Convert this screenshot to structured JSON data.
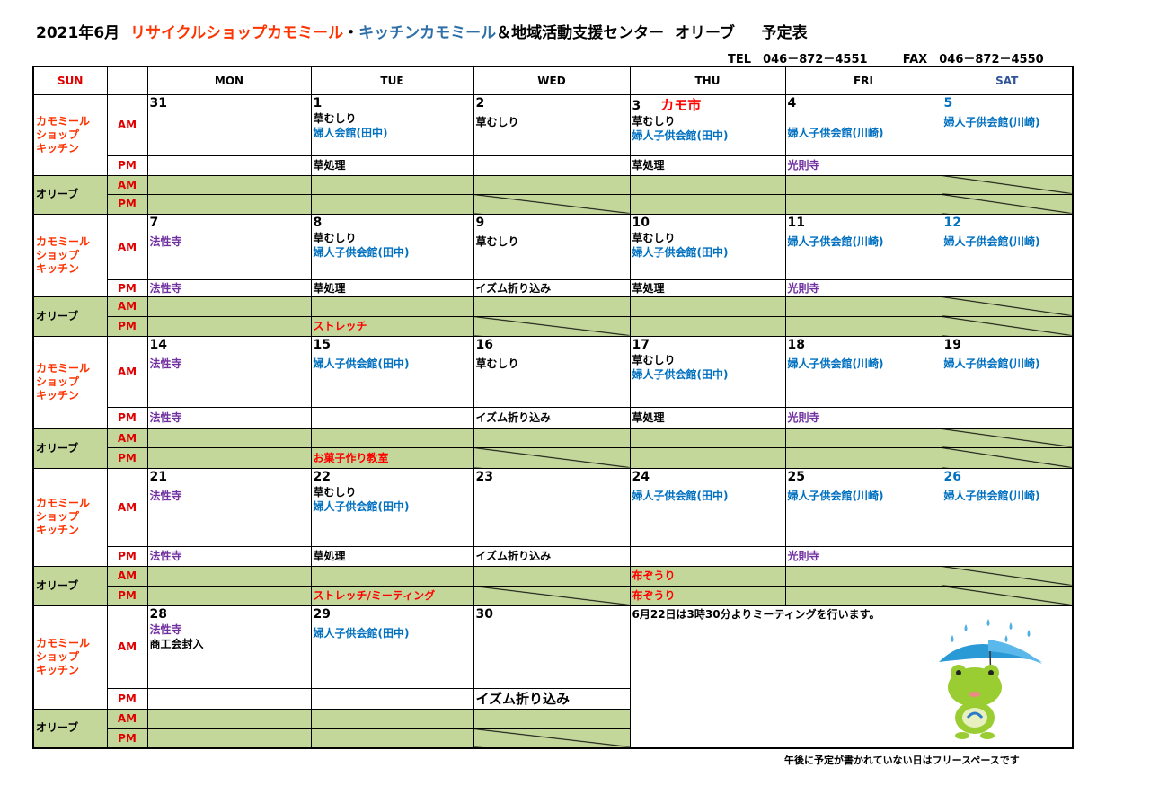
{
  "title": {
    "date": "2021年6月",
    "shop": "リサイクルショップカモミール",
    "dot": "・",
    "kitchen": "キッチンカモミール",
    "rest": "＆地域活動支援センター  オリーブ",
    "schedule": "予定表"
  },
  "contact": {
    "tel": "TEL  046－872－4551",
    "fax": "FAX  046－872－4550"
  },
  "colors": {
    "black": "#000000",
    "blue": "#0070c0",
    "purple": "#7030a0",
    "red": "#ff0000",
    "olive_fill": "#c4d79b",
    "sat": "#2f5597",
    "label": "#ff3300"
  },
  "header": {
    "sun": "SUN",
    "blank": "",
    "days": [
      "MON",
      "TUE",
      "WED",
      "THU",
      "FRI",
      "SAT"
    ]
  },
  "labels": {
    "shop": [
      "カモミール",
      "ショップ",
      "キッチン"
    ],
    "olive": "オリーブ",
    "am": "AM",
    "pm": "PM"
  },
  "weeks": [
    {
      "days": [
        {
          "num": "31",
          "am": [],
          "pm": [],
          "oam": [],
          "opm": []
        },
        {
          "num": "1",
          "am": [
            {
              "t": "草むしり",
              "c": "black"
            },
            {
              "t": "婦人会館(田中)",
              "c": "blue"
            }
          ],
          "pm": [
            {
              "t": "草処理",
              "c": "black"
            }
          ],
          "oam": [],
          "opm": []
        },
        {
          "num": "2",
          "am": [
            {
              "t": "草むしり",
              "c": "black"
            }
          ],
          "pm": [],
          "oam": [],
          "opm": [],
          "pmdiag": true
        },
        {
          "num": "3",
          "event": "カモ市",
          "am": [
            {
              "t": "草むしり",
              "c": "black"
            },
            {
              "t": "婦人子供会館(田中)",
              "c": "blue"
            }
          ],
          "pm": [
            {
              "t": "草処理",
              "c": "black"
            }
          ],
          "oam": [],
          "opm": []
        },
        {
          "num": "4",
          "am": [
            {
              "t": "",
              "c": "black"
            },
            {
              "t": "婦人子供会館(川崎)",
              "c": "blue"
            }
          ],
          "pm": [
            {
              "t": "光則寺",
              "c": "purple"
            }
          ],
          "oam": [],
          "opm": []
        },
        {
          "num": "5",
          "numc": "blue",
          "am": [
            {
              "t": "婦人子供会館(川崎)",
              "c": "blue"
            }
          ],
          "pm": [],
          "oam": [],
          "opm": [],
          "amdiag": true,
          "pmdiag": true
        }
      ]
    },
    {
      "days": [
        {
          "num": "7",
          "am": [
            {
              "t": "法性寺",
              "c": "purple"
            }
          ],
          "pm": [
            {
              "t": "法性寺",
              "c": "purple"
            }
          ],
          "oam": [],
          "opm": []
        },
        {
          "num": "8",
          "am": [
            {
              "t": "草むしり",
              "c": "black"
            },
            {
              "t": "婦人子供会館(田中)",
              "c": "blue"
            }
          ],
          "pm": [
            {
              "t": "草処理",
              "c": "black"
            }
          ],
          "oam": [],
          "opm": [
            {
              "t": "ストレッチ",
              "c": "red"
            }
          ]
        },
        {
          "num": "9",
          "am": [
            {
              "t": "草むしり",
              "c": "black"
            }
          ],
          "pm": [
            {
              "t": "イズム折り込み",
              "c": "black"
            }
          ],
          "oam": [],
          "opm": [],
          "pmdiag": true
        },
        {
          "num": "10",
          "am": [
            {
              "t": "草むしり",
              "c": "black"
            },
            {
              "t": "婦人子供会館(田中)",
              "c": "blue"
            }
          ],
          "pm": [
            {
              "t": "草処理",
              "c": "black"
            }
          ],
          "oam": [],
          "opm": []
        },
        {
          "num": "11",
          "am": [
            {
              "t": "婦人子供会館(川崎)",
              "c": "blue"
            }
          ],
          "pm": [
            {
              "t": "光則寺",
              "c": "purple"
            }
          ],
          "oam": [],
          "opm": []
        },
        {
          "num": "12",
          "numc": "blue",
          "am": [
            {
              "t": "婦人子供会館(川崎)",
              "c": "blue"
            }
          ],
          "pm": [],
          "oam": [],
          "opm": [],
          "amdiag": true,
          "pmdiag": true
        }
      ]
    },
    {
      "days": [
        {
          "num": "14",
          "am": [
            {
              "t": "法性寺",
              "c": "purple"
            }
          ],
          "pm": [
            {
              "t": "法性寺",
              "c": "purple"
            }
          ],
          "oam": [],
          "opm": []
        },
        {
          "num": "15",
          "am": [
            {
              "t": "婦人子供会館(田中)",
              "c": "blue"
            }
          ],
          "pm": [],
          "oam": [],
          "opm": [
            {
              "t": "お菓子作り教室",
              "c": "red"
            }
          ]
        },
        {
          "num": "16",
          "am": [
            {
              "t": "草むしり",
              "c": "black"
            }
          ],
          "pm": [
            {
              "t": "イズム折り込み",
              "c": "black"
            }
          ],
          "oam": [],
          "opm": [],
          "pmdiag": true
        },
        {
          "num": "17",
          "am": [
            {
              "t": "草むしり",
              "c": "black"
            },
            {
              "t": "婦人子供会館(田中)",
              "c": "blue"
            }
          ],
          "pm": [
            {
              "t": "草処理",
              "c": "black"
            }
          ],
          "oam": [],
          "opm": []
        },
        {
          "num": "18",
          "am": [
            {
              "t": "婦人子供会館(川崎)",
              "c": "blue"
            }
          ],
          "pm": [
            {
              "t": "光則寺",
              "c": "purple"
            }
          ],
          "oam": [],
          "opm": []
        },
        {
          "num": "19",
          "am": [
            {
              "t": "婦人子供会館(川崎)",
              "c": "blue"
            }
          ],
          "pm": [],
          "oam": [],
          "opm": [],
          "amdiag": true,
          "pmdiag": true
        }
      ]
    },
    {
      "days": [
        {
          "num": "21",
          "am": [
            {
              "t": "法性寺",
              "c": "purple"
            }
          ],
          "pm": [
            {
              "t": "法性寺",
              "c": "purple"
            }
          ],
          "oam": [],
          "opm": []
        },
        {
          "num": "22",
          "am": [
            {
              "t": "草むしり",
              "c": "black"
            },
            {
              "t": "婦人子供会館(田中)",
              "c": "blue"
            }
          ],
          "pm": [
            {
              "t": "草処理",
              "c": "black"
            }
          ],
          "oam": [],
          "opm": [
            {
              "t": "ストレッチ/ミーティング",
              "c": "red"
            }
          ]
        },
        {
          "num": "23",
          "am": [],
          "pm": [
            {
              "t": "イズム折り込み",
              "c": "black"
            }
          ],
          "oam": [],
          "opm": [],
          "pmdiag": true
        },
        {
          "num": "24",
          "am": [
            {
              "t": "婦人子供会館(田中)",
              "c": "blue"
            }
          ],
          "pm": [],
          "oam": [
            {
              "t": "布ぞうり",
              "c": "red"
            }
          ],
          "opm": [
            {
              "t": "布ぞうり",
              "c": "red"
            }
          ]
        },
        {
          "num": "25",
          "am": [
            {
              "t": "婦人子供会館(川崎)",
              "c": "blue"
            }
          ],
          "pm": [
            {
              "t": "光則寺",
              "c": "purple"
            }
          ],
          "oam": [],
          "opm": []
        },
        {
          "num": "26",
          "numc": "blue",
          "am": [
            {
              "t": "婦人子供会館(川崎)",
              "c": "blue"
            }
          ],
          "pm": [],
          "oam": [],
          "opm": [],
          "amdiag": true,
          "pmdiag": true
        }
      ]
    },
    {
      "days": [
        {
          "num": "28",
          "am": [
            {
              "t": "法性寺",
              "c": "purple"
            },
            {
              "t": "商工会封入",
              "c": "black"
            }
          ],
          "pm": [],
          "oam": [],
          "opm": []
        },
        {
          "num": "29",
          "am": [
            {
              "t": "婦人子供会館(田中)",
              "c": "blue"
            }
          ],
          "pm": [],
          "oam": [],
          "opm": []
        },
        {
          "num": "30",
          "am": [],
          "pm": [
            {
              "t": "イズム折り込み",
              "c": "black"
            }
          ],
          "oam": [],
          "opm": [],
          "pmdiag": true
        }
      ],
      "note": "6月22日は3時30分よりミーティングを行います。"
    }
  ],
  "footnote": "午後に予定が書かれていない日はフリースペースです"
}
